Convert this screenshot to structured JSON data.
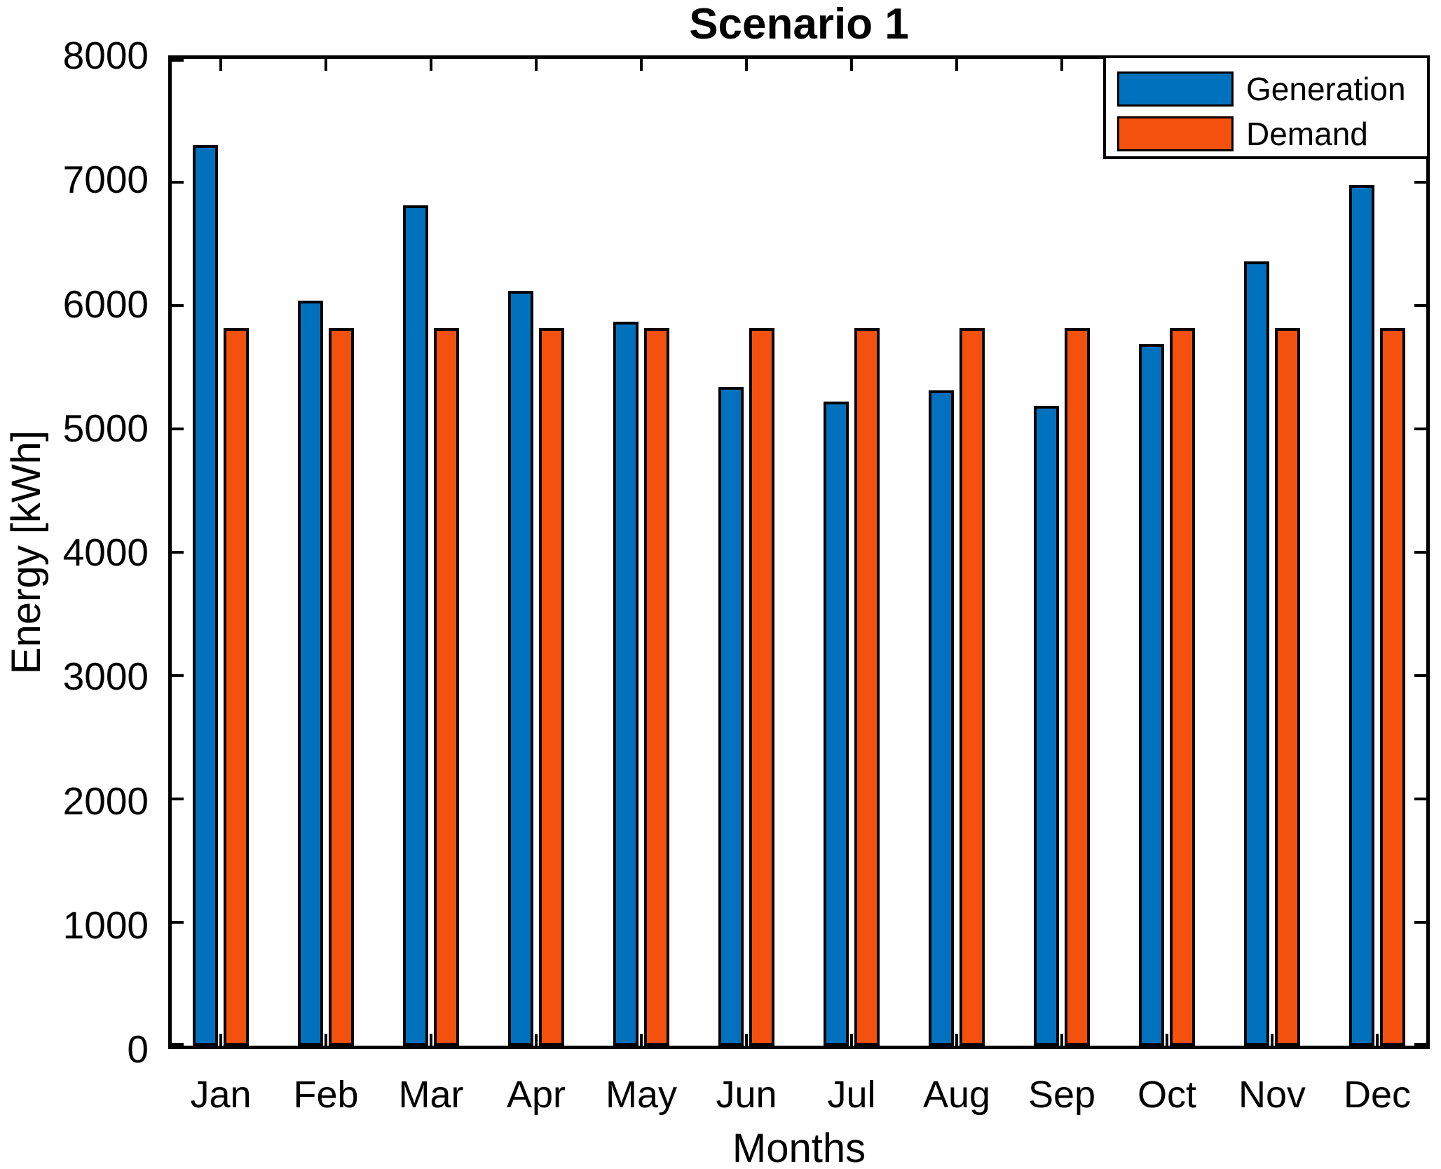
{
  "figure": {
    "title": "Scenario 1",
    "x_axis_label": "Months",
    "y_axis_label": "Energy [kWh]"
  },
  "legend": {
    "position": "top-right",
    "items": [
      "Generation",
      "Demand"
    ]
  },
  "colors": {
    "generation": "#0072BD",
    "demand": "#F4500E",
    "axis": "#000000",
    "bar_edge": "#000000",
    "background": "#FFFFFF"
  },
  "chart_data": {
    "type": "bar",
    "title": "Scenario 1",
    "xlabel": "Months",
    "ylabel": "Energy [kWh]",
    "categories": [
      "Jan",
      "Feb",
      "Mar",
      "Apr",
      "May",
      "Jun",
      "Jul",
      "Aug",
      "Sep",
      "Oct",
      "Nov",
      "Dec"
    ],
    "series": [
      {
        "name": "Generation",
        "color": "#0072BD",
        "values": [
          7300,
          6040,
          6810,
          6120,
          5870,
          5340,
          5220,
          5310,
          5190,
          5690,
          6360,
          6980
        ]
      },
      {
        "name": "Demand",
        "color": "#F4500E",
        "values": [
          5820,
          5820,
          5820,
          5820,
          5820,
          5820,
          5820,
          5820,
          5820,
          5820,
          5820,
          5820
        ]
      }
    ],
    "ylim": [
      0,
      8000
    ],
    "yticks": [
      0,
      1000,
      2000,
      3000,
      4000,
      5000,
      6000,
      7000,
      8000
    ],
    "ytick_labels": [
      "0",
      "1000",
      "2000",
      "3000",
      "4000",
      "5000",
      "6000",
      "7000",
      "8000"
    ],
    "grid": false,
    "legend_position": "top-right",
    "bar_edge_color": "#000000"
  }
}
